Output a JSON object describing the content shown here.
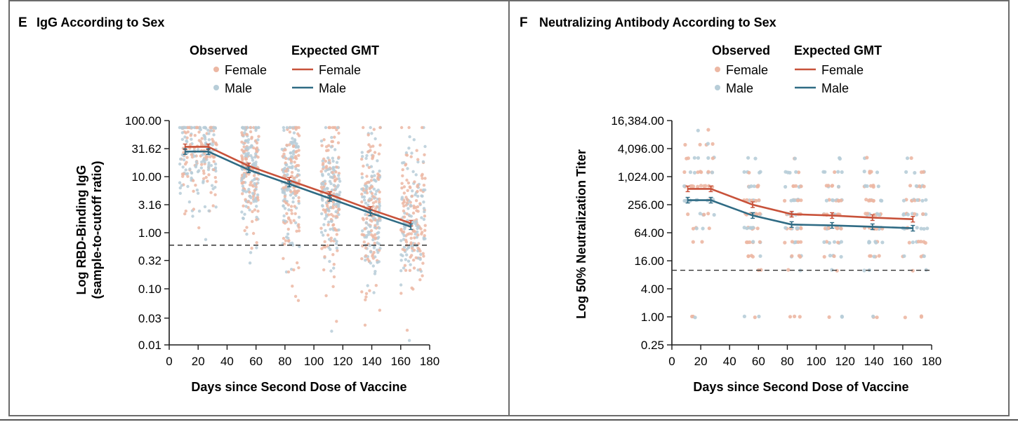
{
  "panels": [
    {
      "letter": "E",
      "title": "IgG According to Sex",
      "legend": {
        "observed_header": "Observed",
        "expected_header": "Expected GMT",
        "female": "Female",
        "male": "Male"
      },
      "ylabel_line1": "Log RBD-Binding IgG",
      "ylabel_line2": "(sample-to-cutoff ratio)",
      "xlabel": "Days since Second Dose of Vaccine",
      "x_ticks": [
        "0",
        "20",
        "40",
        "60",
        "80",
        "100",
        "120",
        "140",
        "160",
        "180"
      ],
      "y_ticks": [
        "100.00",
        "31.62",
        "10.00",
        "3.16",
        "1.00",
        "0.32",
        "0.10",
        "0.03",
        "0.01"
      ]
    },
    {
      "letter": "F",
      "title": "Neutralizing Antibody According to Sex",
      "legend": {
        "observed_header": "Observed",
        "expected_header": "Expected GMT",
        "female": "Female",
        "male": "Male"
      },
      "ylabel_line1": "Log 50% Neutralization Titer",
      "ylabel_line2": "",
      "xlabel": "Days since Second Dose of Vaccine",
      "x_ticks": [
        "0",
        "20",
        "40",
        "60",
        "80",
        "100",
        "120",
        "140",
        "160",
        "180"
      ],
      "y_ticks": [
        "16,384.00",
        "4,096.00",
        "1,024.00",
        "256.00",
        "64.00",
        "16.00",
        "4.00",
        "1.00",
        "0.25"
      ]
    }
  ],
  "colors": {
    "female_line": "#c8523a",
    "male_line": "#2f6b84",
    "female_dot": "#ecb7a3",
    "male_dot": "#b7cdd8",
    "frame": "#6b6b6b",
    "axis": "#1a1a1a"
  },
  "chart_data": [
    {
      "type": "scatter",
      "title": "IgG According to Sex",
      "xlabel": "Days since Second Dose of Vaccine",
      "ylabel": "Log RBD-Binding IgG (sample-to-cutoff ratio)",
      "xlim": [
        0,
        180
      ],
      "ylim": [
        0.01,
        100
      ],
      "y_scale": "log10",
      "threshold": 0.6,
      "observed_clusters": [
        {
          "x_range": [
            7,
            33
          ],
          "center": 30,
          "spread": 0.45
        },
        {
          "x_range": [
            50,
            62
          ],
          "center": 14,
          "spread": 0.5
        },
        {
          "x_range": [
            78,
            90
          ],
          "center": 8,
          "spread": 0.55
        },
        {
          "x_range": [
            105,
            118
          ],
          "center": 4.5,
          "spread": 0.55
        },
        {
          "x_range": [
            133,
            146
          ],
          "center": 2.5,
          "spread": 0.6
        },
        {
          "x_range": [
            160,
            177
          ],
          "center": 1.6,
          "spread": 0.6
        }
      ],
      "series": [
        {
          "name": "Female",
          "x": [
            11,
            27,
            55,
            83,
            111,
            139,
            167
          ],
          "y": [
            34,
            34,
            15.5,
            8.6,
            4.8,
            2.6,
            1.48
          ]
        },
        {
          "name": "Male",
          "x": [
            11,
            27,
            55,
            83,
            111,
            139,
            167
          ],
          "y": [
            28,
            28,
            13.2,
            7.4,
            4.1,
            2.25,
            1.28
          ]
        }
      ],
      "legend": "top-center"
    },
    {
      "type": "scatter",
      "title": "Neutralizing Antibody According to Sex",
      "xlabel": "Days since Second Dose of Vaccine",
      "ylabel": "Log 50% Neutralization Titer",
      "xlim": [
        0,
        180
      ],
      "ylim": [
        0.25,
        16384
      ],
      "y_scale": "log2",
      "threshold": 10,
      "observed_x_clusters": [
        [
          8,
          30
        ],
        [
          50,
          62
        ],
        [
          78,
          90
        ],
        [
          105,
          118
        ],
        [
          133,
          146
        ],
        [
          160,
          177
        ]
      ],
      "observed_levels": [
        1,
        5,
        10,
        20,
        40,
        80,
        160,
        320,
        640,
        1280,
        2560,
        5120,
        10240
      ],
      "series": [
        {
          "name": "Female",
          "x": [
            11,
            27,
            56,
            83,
            111,
            139,
            167
          ],
          "y": [
            560,
            560,
            256,
            160,
            150,
            135,
            125
          ]
        },
        {
          "name": "Male",
          "x": [
            11,
            27,
            56,
            83,
            111,
            139,
            167
          ],
          "y": [
            320,
            320,
            150,
            96,
            92,
            86,
            80
          ]
        }
      ],
      "legend": "top-center"
    }
  ]
}
